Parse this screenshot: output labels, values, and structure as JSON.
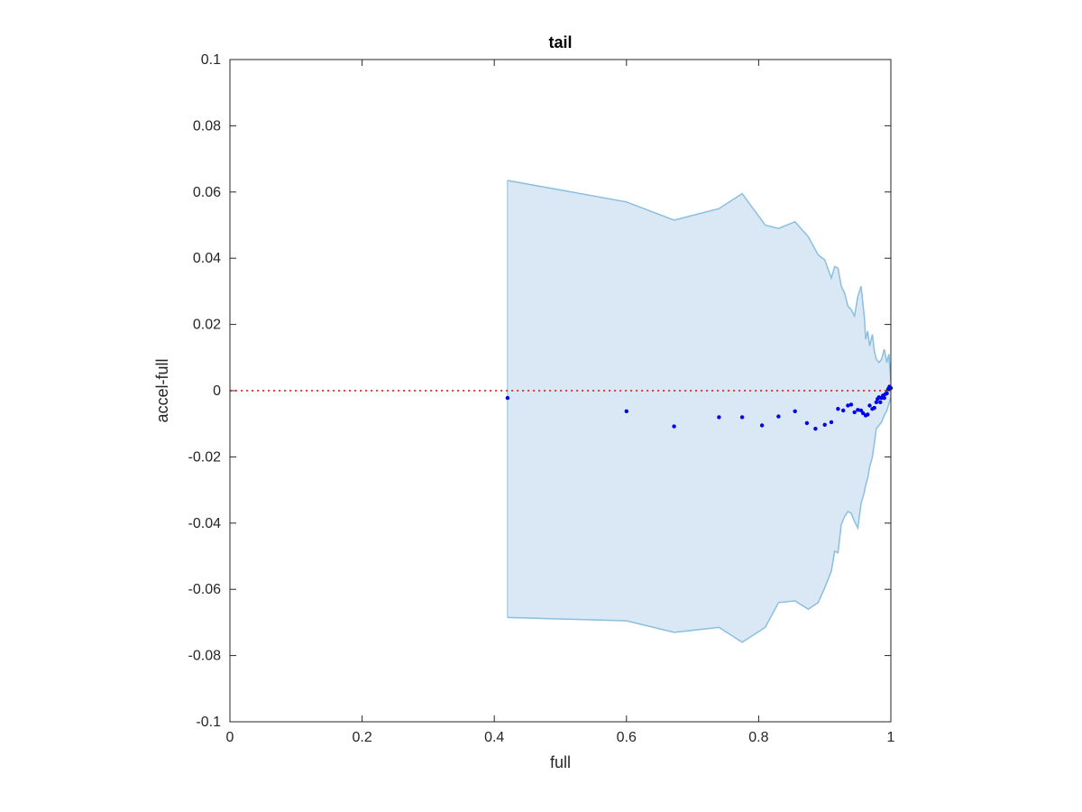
{
  "chart_data": {
    "type": "area",
    "title": "tail",
    "xlabel": "full",
    "ylabel": "accel-full",
    "xlim": [
      0,
      1
    ],
    "ylim": [
      -0.1,
      0.1
    ],
    "xticks": [
      0,
      0.2,
      0.4,
      0.6,
      0.8,
      1
    ],
    "xtick_labels": [
      "0",
      "0.2",
      "0.4",
      "0.6",
      "0.8",
      "1"
    ],
    "yticks": [
      0.1,
      0.08,
      0.06,
      0.04,
      0.02,
      0,
      -0.02,
      -0.04,
      -0.06,
      -0.08,
      -0.1
    ],
    "ytick_labels": [
      "0.1",
      "0.08",
      "0.06",
      "0.04",
      "0.02",
      "0",
      "-0.02",
      "-0.04",
      "-0.06",
      "-0.08",
      "-0.1"
    ],
    "grid": false,
    "colors": {
      "band_fill": "#d9e8f4",
      "band_edge": "#8abfe0",
      "points": "#0000ee",
      "reference_line": "#ff0000",
      "axes": "#262626"
    },
    "reference_line": {
      "y": 0,
      "style": "dotted"
    },
    "band_upper": {
      "x": [
        0.42,
        0.6,
        0.672,
        0.74,
        0.775,
        0.81,
        0.83,
        0.855,
        0.875,
        0.89,
        0.9,
        0.91,
        0.915,
        0.92,
        0.925,
        0.93,
        0.935,
        0.94,
        0.945,
        0.95,
        0.955,
        0.96,
        0.962,
        0.965,
        0.968,
        0.972,
        0.975,
        0.978,
        0.982,
        0.986,
        0.99,
        0.994,
        0.997,
        1.0
      ],
      "y": [
        0.0635,
        0.057,
        0.0515,
        0.055,
        0.0595,
        0.05,
        0.049,
        0.051,
        0.0465,
        0.041,
        0.0395,
        0.034,
        0.0375,
        0.037,
        0.0315,
        0.0295,
        0.0255,
        0.0245,
        0.0225,
        0.0285,
        0.0315,
        0.022,
        0.0155,
        0.018,
        0.0135,
        0.017,
        0.012,
        0.0095,
        0.0085,
        0.0095,
        0.0125,
        0.0085,
        0.011,
        0.003
      ]
    },
    "band_lower": {
      "x": [
        0.42,
        0.6,
        0.672,
        0.74,
        0.775,
        0.81,
        0.83,
        0.855,
        0.875,
        0.89,
        0.9,
        0.91,
        0.915,
        0.92,
        0.925,
        0.93,
        0.935,
        0.94,
        0.945,
        0.95,
        0.955,
        0.96,
        0.962,
        0.965,
        0.968,
        0.972,
        0.975,
        0.978,
        0.982,
        0.986,
        0.99,
        0.994,
        0.997,
        1.0
      ],
      "y": [
        -0.0685,
        -0.0695,
        -0.073,
        -0.0715,
        -0.076,
        -0.0715,
        -0.064,
        -0.0635,
        -0.066,
        -0.064,
        -0.0595,
        -0.0545,
        -0.0485,
        -0.049,
        -0.0405,
        -0.038,
        -0.0365,
        -0.037,
        -0.0395,
        -0.0415,
        -0.034,
        -0.0305,
        -0.0285,
        -0.0265,
        -0.023,
        -0.02,
        -0.016,
        -0.0115,
        -0.0105,
        -0.0095,
        -0.0075,
        -0.006,
        -0.004,
        -0.002
      ]
    },
    "points": {
      "x": [
        0.42,
        0.6,
        0.672,
        0.74,
        0.775,
        0.805,
        0.83,
        0.855,
        0.873,
        0.886,
        0.9,
        0.91,
        0.92,
        0.928,
        0.935,
        0.94,
        0.945,
        0.95,
        0.955,
        0.958,
        0.962,
        0.965,
        0.968,
        0.972,
        0.975,
        0.978,
        0.98,
        0.982,
        0.984,
        0.986,
        0.988,
        0.99,
        0.992,
        0.994,
        0.996,
        0.998,
        1.0
      ],
      "y": [
        -0.0022,
        -0.0062,
        -0.0108,
        -0.008,
        -0.008,
        -0.0105,
        -0.0078,
        -0.0062,
        -0.0098,
        -0.0115,
        -0.0103,
        -0.0095,
        -0.0055,
        -0.006,
        -0.0045,
        -0.0042,
        -0.0065,
        -0.0058,
        -0.006,
        -0.0068,
        -0.0075,
        -0.0072,
        -0.0045,
        -0.0055,
        -0.0052,
        -0.0035,
        -0.0025,
        -0.002,
        -0.0035,
        -0.0022,
        -0.0015,
        -0.0022,
        -0.001,
        -0.0008,
        0.0005,
        0.0012,
        0.0008
      ]
    }
  }
}
